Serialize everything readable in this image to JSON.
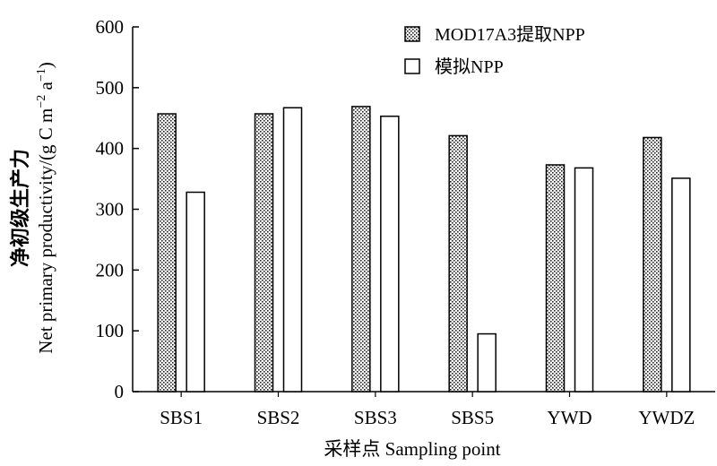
{
  "chart_data": {
    "type": "bar",
    "title": "",
    "xlabel": "采样点 Sampling point",
    "ylabel_cn": "净初级生产力",
    "ylabel_en_pre": "Net primary productivity/(g C m",
    "ylabel_en_sup1": "−2",
    "ylabel_en_mid": " a",
    "ylabel_en_sup2": "−1",
    "ylabel_en_post": ")",
    "categories": [
      "SBS1",
      "SBS2",
      "SBS3",
      "SBS5",
      "YWD",
      "YWDZ"
    ],
    "ylim": [
      0,
      600
    ],
    "yticks": [
      0,
      100,
      200,
      300,
      400,
      500,
      600
    ],
    "series": [
      {
        "name": "MOD17A3提取NPP",
        "pattern": "hatched",
        "values": [
          457,
          457,
          469,
          421,
          373,
          418
        ]
      },
      {
        "name": "模拟NPP",
        "pattern": "white",
        "values": [
          328,
          467,
          453,
          95,
          368,
          351
        ]
      }
    ],
    "legend_position": "top-right",
    "grid": false
  }
}
